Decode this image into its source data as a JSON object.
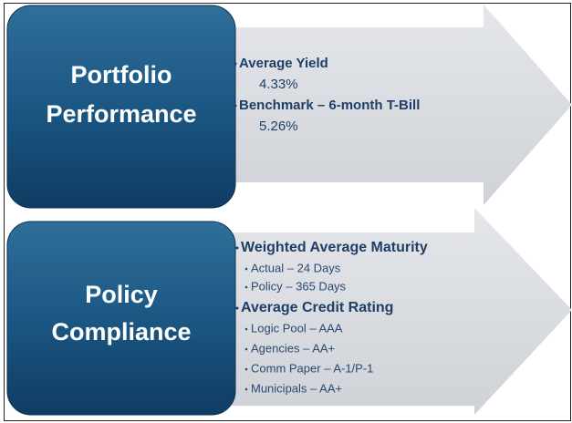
{
  "sections": [
    {
      "title": [
        "Portfolio",
        "Performance"
      ],
      "items": [
        {
          "heading": "Average Yield",
          "details": [
            "4.33%"
          ]
        },
        {
          "heading": "Benchmark – 6-month T-Bill",
          "details": [
            "5.26%"
          ]
        }
      ]
    },
    {
      "title": [
        "Policy",
        "Compliance"
      ],
      "items": [
        {
          "heading": "Weighted Average Maturity",
          "details": [
            "Actual – 24 Days",
            "Policy – 365 Days"
          ]
        },
        {
          "heading": "Average Credit Rating",
          "details": [
            "Logic Pool – AAA",
            "Agencies – AA+",
            "Comm Paper – A-1/P-1",
            "Municipals – AA+"
          ]
        }
      ]
    }
  ]
}
